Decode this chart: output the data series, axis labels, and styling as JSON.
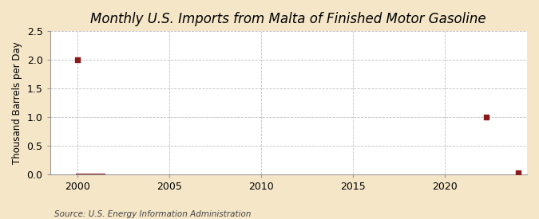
{
  "title": "Monthly U.S. Imports from Malta of Finished Motor Gasoline",
  "ylabel": "Thousand Barrels per Day",
  "source": "Source: U.S. Energy Information Administration",
  "background_color": "#f5e6c8",
  "plot_background_color": "#ffffff",
  "grid_color": "#bbbbbb",
  "data_color": "#8b1a1a",
  "xlim": [
    1998.5,
    2024.5
  ],
  "ylim": [
    0,
    2.5
  ],
  "yticks": [
    0.0,
    0.5,
    1.0,
    1.5,
    2.0,
    2.5
  ],
  "xticks": [
    2000,
    2005,
    2010,
    2015,
    2020
  ],
  "scatter_x": [
    2000.0,
    2022.3,
    2024.0
  ],
  "scatter_y": [
    2.0,
    1.0,
    0.02
  ],
  "short_line_x": [
    1999.9,
    2000.0,
    2000.1,
    2000.5,
    2001.0,
    2001.5
  ],
  "short_line_y": [
    0.0,
    0.0,
    0.0,
    0.0,
    0.0,
    0.0
  ],
  "title_fontsize": 12,
  "label_fontsize": 8.5,
  "tick_fontsize": 9,
  "source_fontsize": 7.5
}
